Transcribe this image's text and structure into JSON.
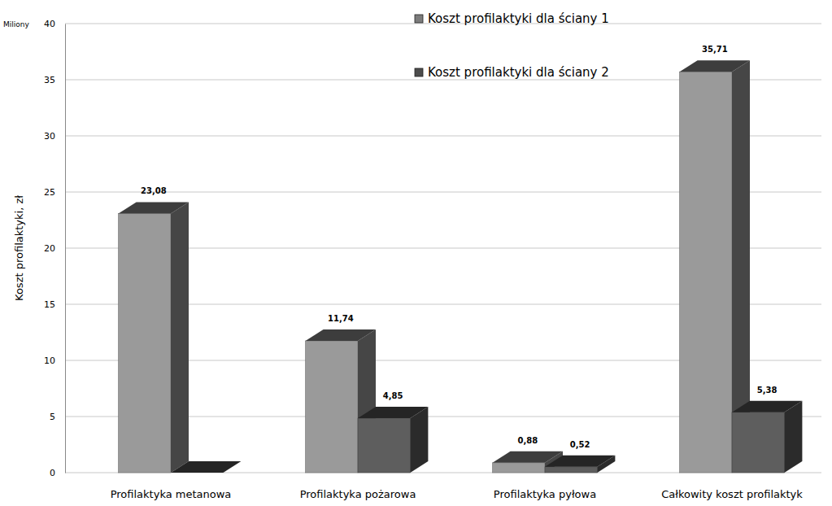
{
  "chart_data": {
    "type": "bar",
    "y_label": "Koszt profilaktyki, zł",
    "annotations": [
      "Miliony"
    ],
    "categories": [
      "Profilaktyka metanowa",
      "Profilaktyka pożarowa",
      "Profilaktyka pyłowa",
      "Całkowity koszt profilaktyk"
    ],
    "series": [
      {
        "name": "Koszt profilaktyki dla ściany 1",
        "color": "#9a9a9a",
        "values": [
          23.08,
          11.74,
          0.88,
          35.71
        ],
        "value_labels": [
          "23,08",
          "11,74",
          "0,88",
          "35,71"
        ]
      },
      {
        "name": "Koszt profilaktyki dla ściany 2",
        "color": "#5e5e5e",
        "values": [
          0,
          4.85,
          0.52,
          5.38
        ],
        "value_labels": [
          null,
          "4,85",
          "0,52",
          "5,38"
        ]
      }
    ],
    "ylim": [
      0,
      40
    ],
    "yticks": [
      0,
      5,
      10,
      15,
      20,
      25,
      30,
      35,
      40
    ],
    "grid": true,
    "legend": "top-right",
    "data_labels": true
  }
}
